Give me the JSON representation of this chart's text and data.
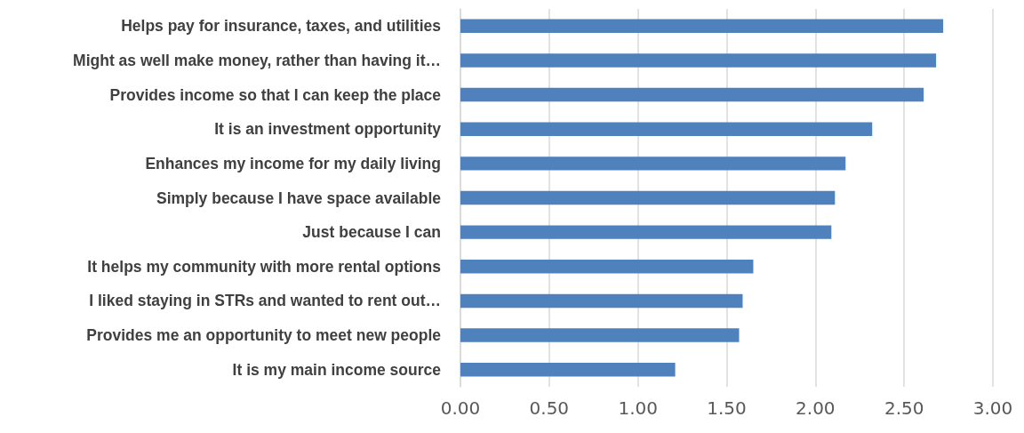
{
  "chart_data": {
    "type": "bar",
    "orientation": "horizontal",
    "categories": [
      "Helps pay for insurance, taxes, and utilities",
      "Might as well make money, rather than having it…",
      "Provides income so that I can keep the place",
      "It is an investment opportunity",
      "Enhances my income for my daily living",
      "Simply because I have space available",
      "Just because I can",
      "It helps my community with more rental options",
      "I liked staying in STRs and wanted to rent out…",
      "Provides me an opportunity to meet new people",
      "It is my main income source"
    ],
    "values": [
      2.72,
      2.68,
      2.61,
      2.32,
      2.17,
      2.11,
      2.09,
      1.65,
      1.59,
      1.57,
      1.21
    ],
    "color": "#4f81bd",
    "xlim": [
      0,
      3
    ],
    "xticks": [
      {
        "value": 0,
        "label": "0.00"
      },
      {
        "value": 0.5,
        "label": "0.50"
      },
      {
        "value": 1,
        "label": "1.00"
      },
      {
        "value": 1.5,
        "label": "1.50"
      },
      {
        "value": 2,
        "label": "2.00"
      },
      {
        "value": 2.5,
        "label": "2.50"
      },
      {
        "value": 3,
        "label": "3.00"
      }
    ],
    "grid": "x"
  }
}
